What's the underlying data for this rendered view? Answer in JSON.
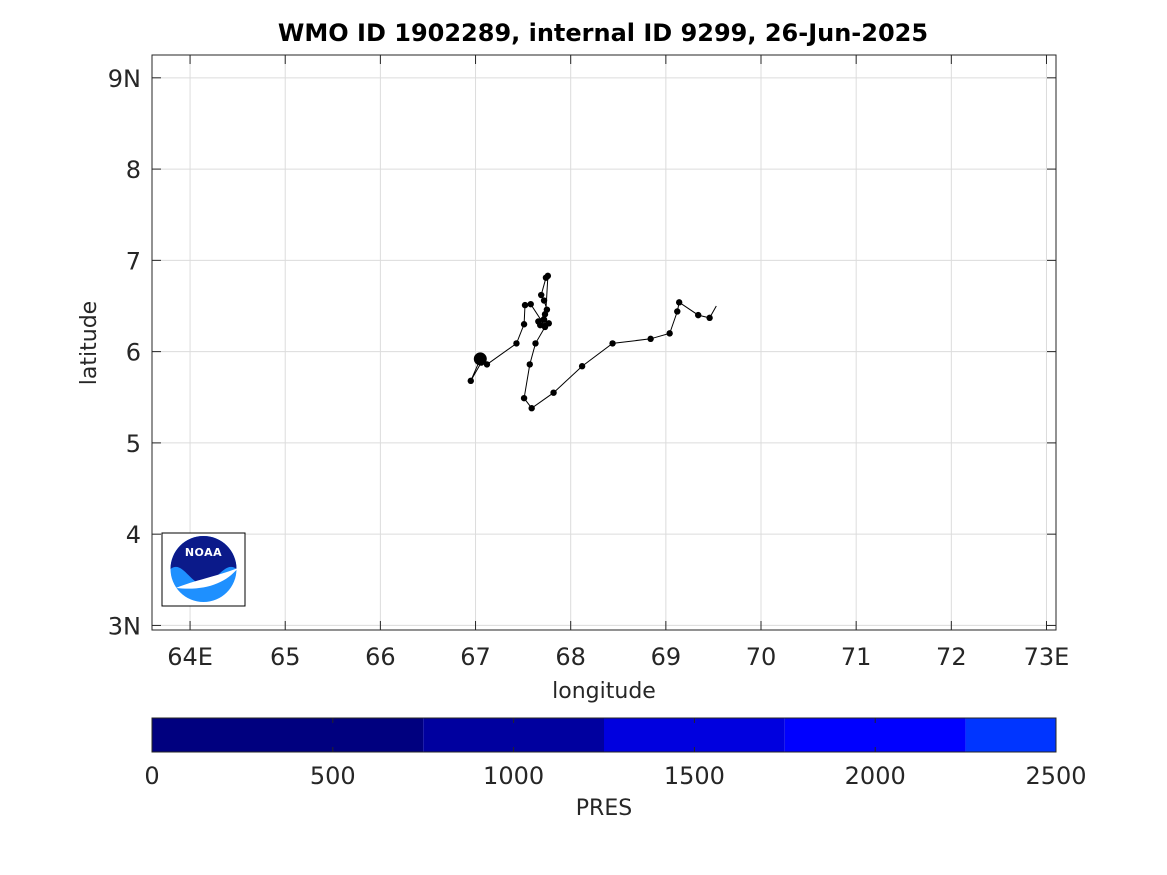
{
  "chart_data": {
    "type": "line",
    "title": "WMO ID 1902289, internal ID 9299, 26-Jun-2025",
    "xlabel": "longitude",
    "ylabel": "latitude",
    "xlim": [
      63.6,
      73.1
    ],
    "ylim": [
      2.95,
      9.25
    ],
    "grid": true,
    "x_ticks": [
      64,
      65,
      66,
      67,
      68,
      69,
      70,
      71,
      72,
      73
    ],
    "x_tick_labels": [
      "64E",
      "65",
      "66",
      "67",
      "68",
      "69",
      "70",
      "71",
      "72",
      "73E"
    ],
    "y_ticks": [
      3,
      4,
      5,
      6,
      7,
      8,
      9
    ],
    "y_tick_labels": [
      "3N",
      "4",
      "5",
      "6",
      "7",
      "8",
      "9N"
    ],
    "series": [
      {
        "x": [
          69.53,
          69.46,
          69.34,
          69.14,
          69.12,
          69.04,
          68.84,
          68.44,
          68.12,
          67.82,
          67.59,
          67.51,
          67.57,
          67.63,
          67.73,
          67.77,
          67.72,
          67.68,
          67.66,
          67.73,
          67.75,
          67.72,
          67.69,
          67.74,
          67.76,
          67.73,
          67.58,
          67.52,
          67.51,
          67.43,
          67.12,
          67.06,
          66.95,
          67.05
        ],
        "y": [
          6.5,
          6.37,
          6.4,
          6.54,
          6.44,
          6.2,
          6.14,
          6.09,
          5.84,
          5.55,
          5.38,
          5.49,
          5.86,
          6.09,
          6.27,
          6.31,
          6.35,
          6.29,
          6.33,
          6.41,
          6.46,
          6.56,
          6.62,
          6.81,
          6.83,
          6.28,
          6.52,
          6.51,
          6.3,
          6.09,
          5.86,
          5.88,
          5.68,
          5.92
        ],
        "last_position": [
          67.05,
          5.92
        ]
      }
    ],
    "colorbar": {
      "label": "PRES",
      "ticks": [
        0,
        500,
        1000,
        1500,
        2000,
        2500
      ],
      "range": [
        0,
        2500
      ],
      "segments": [
        {
          "from": 0,
          "to": 750,
          "color": "#00007f"
        },
        {
          "from": 750,
          "to": 1250,
          "color": "#00009f"
        },
        {
          "from": 1250,
          "to": 1750,
          "color": "#0000df"
        },
        {
          "from": 1750,
          "to": 2250,
          "color": "#0000ff"
        },
        {
          "from": 2250,
          "to": 2500,
          "color": "#0035ff"
        }
      ]
    }
  },
  "logo": {
    "text": "NOAA"
  },
  "colors": {
    "track": "#000000",
    "grid": "#dcdcdc",
    "axis": "#262626",
    "logo_dark": "#0b1a8a",
    "logo_light": "#1e90ff"
  }
}
